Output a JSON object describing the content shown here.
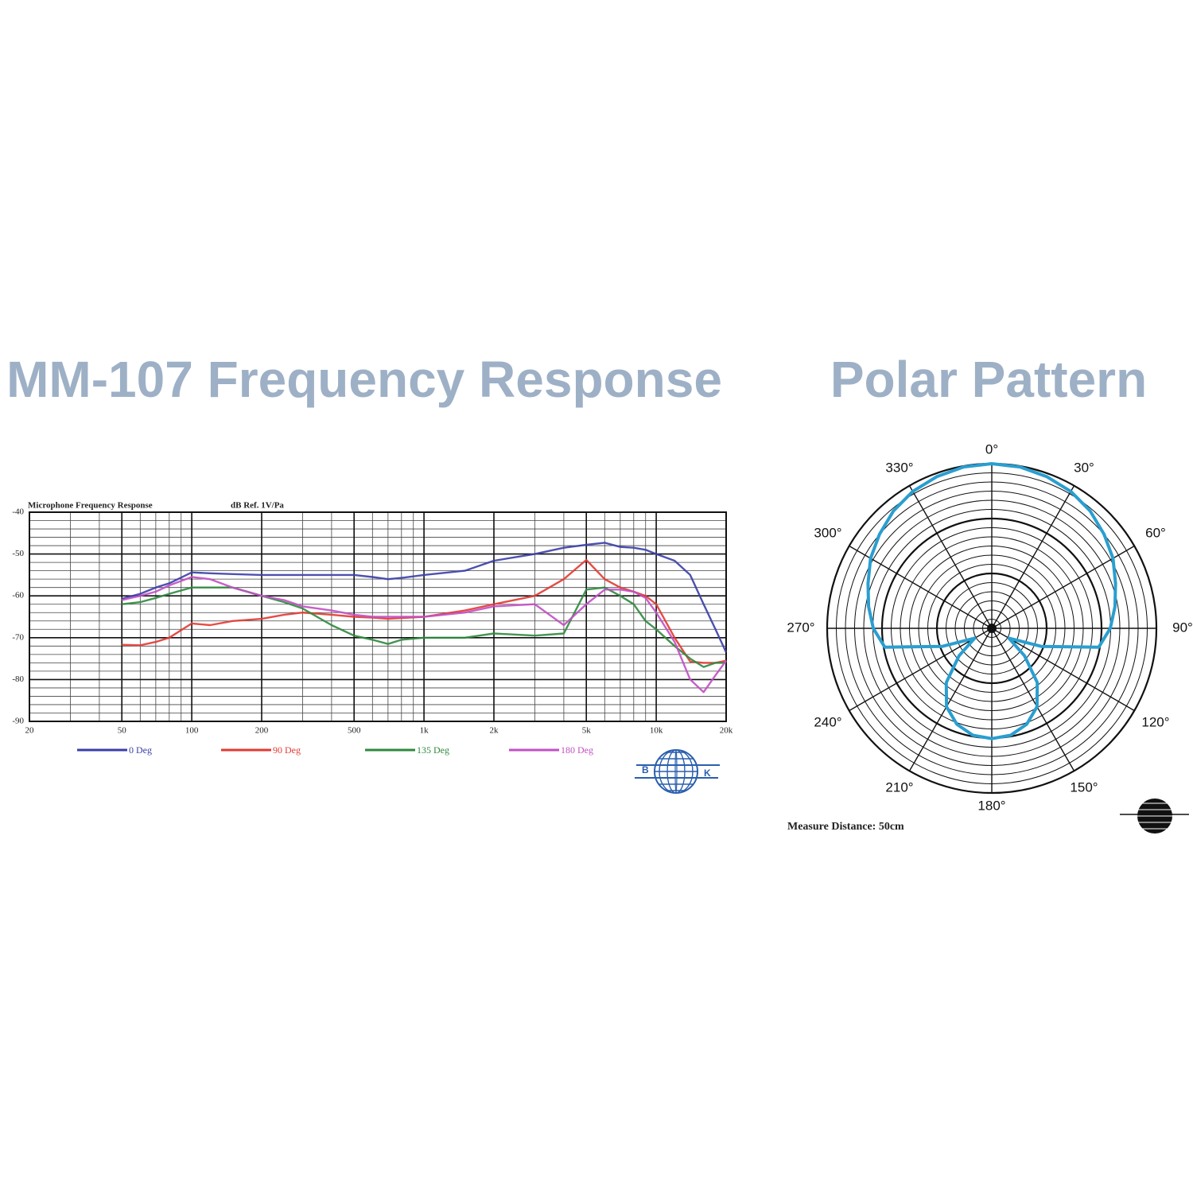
{
  "chart_data": [
    {
      "type": "line",
      "title": "MM-107 Frequency Response",
      "subtitle": "Microphone Frequency Response",
      "y_label": "dB Ref. 1V/Pa",
      "xscale": "log",
      "xlim": [
        20,
        20000
      ],
      "ylim": [
        -90,
        -40
      ],
      "xticks": [
        20,
        50,
        100,
        200,
        500,
        {
          "value": 1000,
          "label": "1k"
        },
        {
          "value": 2000,
          "label": "2k"
        },
        {
          "value": 5000,
          "label": "5k"
        },
        {
          "value": 10000,
          "label": "10k"
        },
        {
          "value": 20000,
          "label": "20k"
        }
      ],
      "yticks": [
        -90,
        -80,
        -70,
        -60,
        -50,
        -40
      ],
      "grid": true,
      "x": [
        50,
        60,
        70,
        80,
        100,
        120,
        150,
        200,
        250,
        300,
        400,
        500,
        600,
        700,
        800,
        1000,
        1500,
        2000,
        3000,
        4000,
        5000,
        6000,
        7000,
        8000,
        9000,
        10000,
        12000,
        14000,
        16000,
        18000,
        20000
      ],
      "series": [
        {
          "name": "0 Deg",
          "color": "#3a3ea8",
          "values": [
            -60.7,
            -59.5,
            -58,
            -57,
            -54.4,
            -54.6,
            -54.8,
            -55,
            -55,
            -55,
            -55,
            -55,
            -55.5,
            -56,
            -55.7,
            -55,
            -54,
            -51.6,
            -50,
            -48.5,
            -47.8,
            -47.3,
            -48.3,
            -48.5,
            -49,
            -50,
            -51.6,
            -55,
            -62,
            -68,
            -73.5
          ]
        },
        {
          "name": "90 Deg",
          "color": "#e23a33",
          "values": [
            -71.7,
            -71.8,
            -71,
            -70,
            -66.6,
            -67,
            -66,
            -65.5,
            -64.5,
            -64,
            -64.5,
            -65,
            -65.2,
            -65.5,
            -65.3,
            -65,
            -63.5,
            -62,
            -60,
            -56,
            -51.4,
            -56,
            -58,
            -59,
            -60,
            -62,
            -70,
            -75.7,
            -76,
            -76,
            -75.5
          ]
        },
        {
          "name": "135 Deg",
          "color": "#2f8a3e",
          "values": [
            -62,
            -61.5,
            -60.5,
            -59.5,
            -58,
            -58,
            -58,
            -60,
            -61.5,
            -63,
            -67,
            -69.5,
            -70.5,
            -71.5,
            -70.5,
            -70,
            -70,
            -69,
            -69.5,
            -69,
            -58.5,
            -58,
            -60,
            -62,
            -66,
            -68,
            -72,
            -75,
            -77,
            -76,
            -76
          ]
        },
        {
          "name": "180 Deg",
          "color": "#c24fc4",
          "values": [
            -61,
            -60,
            -59,
            -57.5,
            -55.5,
            -56,
            -58,
            -60,
            -61,
            -62.5,
            -63.5,
            -64.5,
            -65,
            -65,
            -65,
            -65,
            -64,
            -62.5,
            -62,
            -67,
            -62,
            -58.5,
            -58.5,
            -59,
            -60.5,
            -64,
            -71,
            -80,
            -83,
            -79,
            -75.5
          ]
        }
      ],
      "logo": [
        "B",
        "K"
      ]
    },
    {
      "type": "polar",
      "title": "Polar Pattern",
      "rlim": [
        0,
        1
      ],
      "theta": [
        0,
        10,
        20,
        30,
        40,
        50,
        60,
        70,
        80,
        90,
        100,
        110,
        120,
        130,
        140,
        150,
        160,
        170,
        180,
        190,
        200,
        210,
        220,
        230,
        240,
        250,
        260,
        270,
        280,
        290,
        300,
        310,
        320,
        330,
        340,
        350
      ],
      "r": [
        1.0,
        0.995,
        0.98,
        0.96,
        0.93,
        0.89,
        0.85,
        0.8,
        0.76,
        0.72,
        0.66,
        0.32,
        0.12,
        0.26,
        0.43,
        0.55,
        0.62,
        0.66,
        0.67,
        0.66,
        0.62,
        0.55,
        0.43,
        0.26,
        0.12,
        0.32,
        0.66,
        0.72,
        0.76,
        0.8,
        0.85,
        0.89,
        0.93,
        0.96,
        0.98,
        0.995
      ],
      "color": "#2a9ed0",
      "thetaticks": [
        {
          "value": 0,
          "label": "0°"
        },
        {
          "value": 30,
          "label": "30°"
        },
        {
          "value": 60,
          "label": "60°"
        },
        {
          "value": 90,
          "label": "90°"
        },
        {
          "value": 120,
          "label": "120°"
        },
        {
          "value": 150,
          "label": "150°"
        },
        {
          "value": 180,
          "label": "180°"
        },
        {
          "value": 210,
          "label": "210°"
        },
        {
          "value": 240,
          "label": "240°"
        },
        {
          "value": 270,
          "label": "270°"
        },
        {
          "value": 300,
          "label": "300°"
        },
        {
          "value": 330,
          "label": "330°"
        }
      ],
      "annotation": "Measure Distance: 50cm"
    }
  ]
}
